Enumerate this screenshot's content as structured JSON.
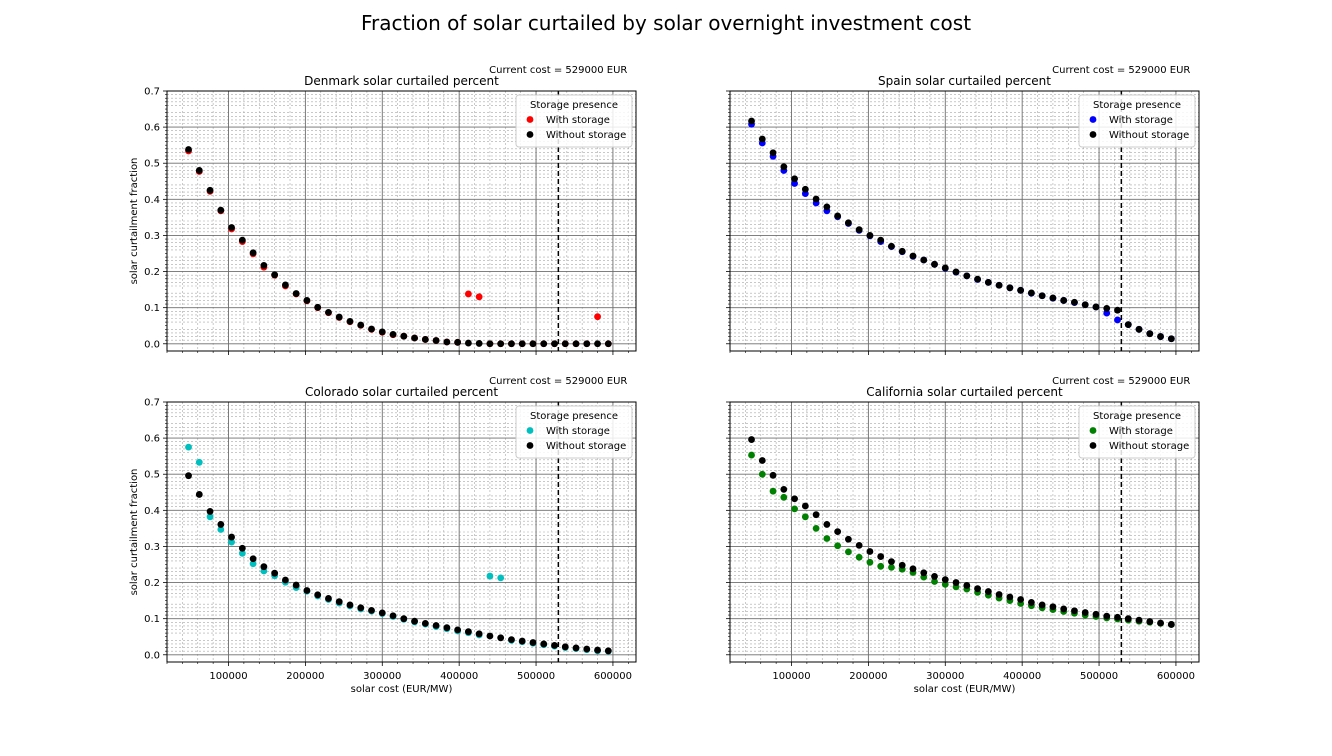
{
  "suptitle": "Fraction of solar curtailed by solar overnight investment cost",
  "chart_data": [
    {
      "type": "scatter",
      "title": "Denmark solar curtailed percent",
      "annotation": "Current cost = 529000 EUR",
      "current_cost": 529000,
      "xlabel": "",
      "ylabel": "solar curtailment fraction",
      "xlim": [
        20000,
        630000
      ],
      "ylim": [
        -0.02,
        0.7
      ],
      "xticks": [],
      "yticks": [
        "0.0",
        "0.1",
        "0.2",
        "0.3",
        "0.4",
        "0.5",
        "0.6",
        "0.7"
      ],
      "grid": true,
      "legend": {
        "title": "Storage presence",
        "position": "top-right"
      },
      "series": [
        {
          "name": "With storage",
          "color": "#ff0000",
          "x": [
            48000,
            62000,
            76000,
            90000,
            104000,
            118000,
            132000,
            146000,
            160000,
            174000,
            188000,
            202000,
            216000,
            230000,
            244000,
            258000,
            272000,
            286000,
            300000,
            314000,
            328000,
            342000,
            356000,
            370000,
            384000,
            398000,
            412000,
            426000,
            440000,
            454000,
            468000,
            482000,
            496000,
            510000,
            524000,
            538000,
            552000,
            566000,
            580000,
            594000
          ],
          "y": [
            0.534,
            0.477,
            0.422,
            0.368,
            0.318,
            0.283,
            0.249,
            0.212,
            0.19,
            0.16,
            0.138,
            0.119,
            0.1,
            0.086,
            0.073,
            0.061,
            0.051,
            0.04,
            0.032,
            0.025,
            0.021,
            0.016,
            0.012,
            0.009,
            0.005,
            0.004,
            0.138,
            0.13,
            0.0,
            0.0,
            0.0,
            0.0,
            0.0,
            0.0,
            0.0,
            0.0,
            0.0,
            0.0,
            0.075,
            0.0
          ]
        },
        {
          "name": "Without storage",
          "color": "#000000",
          "x": [
            48000,
            62000,
            76000,
            90000,
            104000,
            118000,
            132000,
            146000,
            160000,
            174000,
            188000,
            202000,
            216000,
            230000,
            244000,
            258000,
            272000,
            286000,
            300000,
            314000,
            328000,
            342000,
            356000,
            370000,
            384000,
            398000,
            412000,
            426000,
            440000,
            454000,
            468000,
            482000,
            496000,
            510000,
            524000,
            538000,
            552000,
            566000,
            580000,
            594000
          ],
          "y": [
            0.538,
            0.48,
            0.425,
            0.37,
            0.322,
            0.287,
            0.252,
            0.217,
            0.191,
            0.163,
            0.139,
            0.12,
            0.101,
            0.087,
            0.074,
            0.062,
            0.052,
            0.041,
            0.033,
            0.026,
            0.021,
            0.016,
            0.012,
            0.009,
            0.005,
            0.004,
            0.002,
            0.001,
            0.0,
            0.0,
            0.0,
            0.0,
            0.0,
            0.0,
            0.0,
            0.0,
            0.0,
            0.0,
            0.0,
            0.0
          ]
        }
      ]
    },
    {
      "type": "scatter",
      "title": "Spain solar curtailed percent",
      "annotation": "Current cost = 529000 EUR",
      "current_cost": 529000,
      "xlabel": "",
      "ylabel": "",
      "xlim": [
        20000,
        630000
      ],
      "ylim": [
        -0.02,
        0.7
      ],
      "xticks": [],
      "yticks": [],
      "grid": true,
      "legend": {
        "title": "Storage presence",
        "position": "top-right"
      },
      "series": [
        {
          "name": "With storage",
          "color": "#0000ff",
          "x": [
            48000,
            62000,
            76000,
            90000,
            104000,
            118000,
            132000,
            146000,
            160000,
            174000,
            188000,
            202000,
            216000,
            230000,
            244000,
            258000,
            272000,
            286000,
            300000,
            314000,
            328000,
            342000,
            356000,
            370000,
            384000,
            398000,
            412000,
            426000,
            440000,
            454000,
            468000,
            482000,
            496000,
            510000,
            524000,
            538000,
            552000,
            566000,
            580000,
            594000
          ],
          "y": [
            0.608,
            0.556,
            0.519,
            0.48,
            0.444,
            0.416,
            0.39,
            0.368,
            0.352,
            0.333,
            0.314,
            0.299,
            0.283,
            0.269,
            0.255,
            0.242,
            0.232,
            0.22,
            0.209,
            0.198,
            0.188,
            0.178,
            0.17,
            0.162,
            0.155,
            0.148,
            0.14,
            0.133,
            0.126,
            0.12,
            0.114,
            0.108,
            0.102,
            0.085,
            0.066,
            0.053,
            0.04,
            0.028,
            0.02,
            0.014
          ]
        },
        {
          "name": "Without storage",
          "color": "#000000",
          "x": [
            48000,
            62000,
            76000,
            90000,
            104000,
            118000,
            132000,
            146000,
            160000,
            174000,
            188000,
            202000,
            216000,
            230000,
            244000,
            258000,
            272000,
            286000,
            300000,
            314000,
            328000,
            342000,
            356000,
            370000,
            384000,
            398000,
            412000,
            426000,
            440000,
            454000,
            468000,
            482000,
            496000,
            510000,
            524000,
            538000,
            552000,
            566000,
            580000,
            594000
          ],
          "y": [
            0.617,
            0.567,
            0.529,
            0.49,
            0.457,
            0.428,
            0.401,
            0.379,
            0.354,
            0.335,
            0.316,
            0.3,
            0.287,
            0.27,
            0.256,
            0.243,
            0.232,
            0.22,
            0.21,
            0.199,
            0.188,
            0.179,
            0.17,
            0.162,
            0.155,
            0.148,
            0.141,
            0.133,
            0.127,
            0.12,
            0.115,
            0.108,
            0.102,
            0.098,
            0.093,
            0.053,
            0.04,
            0.028,
            0.02,
            0.014
          ]
        }
      ]
    },
    {
      "type": "scatter",
      "title": "Colorado solar curtailed percent",
      "annotation": "Current cost = 529000 EUR",
      "current_cost": 529000,
      "xlabel": "solar cost (EUR/MW)",
      "ylabel": "solar curtailment fraction",
      "xlim": [
        20000,
        630000
      ],
      "ylim": [
        -0.02,
        0.7
      ],
      "xticks": [
        "100000",
        "200000",
        "300000",
        "400000",
        "500000",
        "600000"
      ],
      "yticks": [
        "0.0",
        "0.1",
        "0.2",
        "0.3",
        "0.4",
        "0.5",
        "0.6",
        "0.7"
      ],
      "grid": true,
      "legend": {
        "title": "Storage presence",
        "position": "top-right"
      },
      "series": [
        {
          "name": "With storage",
          "color": "#00bfbf",
          "x": [
            48000,
            62000,
            76000,
            90000,
            104000,
            118000,
            132000,
            146000,
            160000,
            174000,
            188000,
            202000,
            216000,
            230000,
            244000,
            258000,
            272000,
            286000,
            300000,
            314000,
            328000,
            342000,
            356000,
            370000,
            384000,
            398000,
            412000,
            426000,
            440000,
            454000,
            468000,
            482000,
            496000,
            510000,
            524000,
            538000,
            552000,
            566000,
            580000,
            594000
          ],
          "y": [
            0.575,
            0.533,
            0.382,
            0.347,
            0.312,
            0.281,
            0.252,
            0.232,
            0.219,
            0.201,
            0.186,
            0.176,
            0.163,
            0.153,
            0.143,
            0.135,
            0.127,
            0.121,
            0.114,
            0.106,
            0.098,
            0.091,
            0.085,
            0.078,
            0.072,
            0.066,
            0.061,
            0.055,
            0.218,
            0.213,
            0.04,
            0.036,
            0.032,
            0.028,
            0.024,
            0.02,
            0.017,
            0.014,
            0.011,
            0.01
          ]
        },
        {
          "name": "Without storage",
          "color": "#000000",
          "x": [
            48000,
            62000,
            76000,
            90000,
            104000,
            118000,
            132000,
            146000,
            160000,
            174000,
            188000,
            202000,
            216000,
            230000,
            244000,
            258000,
            272000,
            286000,
            300000,
            314000,
            328000,
            342000,
            356000,
            370000,
            384000,
            398000,
            412000,
            426000,
            440000,
            454000,
            468000,
            482000,
            496000,
            510000,
            524000,
            538000,
            552000,
            566000,
            580000,
            594000
          ],
          "y": [
            0.496,
            0.444,
            0.397,
            0.361,
            0.326,
            0.295,
            0.266,
            0.244,
            0.226,
            0.207,
            0.193,
            0.178,
            0.166,
            0.156,
            0.147,
            0.138,
            0.13,
            0.123,
            0.116,
            0.108,
            0.1,
            0.093,
            0.087,
            0.081,
            0.075,
            0.069,
            0.064,
            0.058,
            0.052,
            0.047,
            0.042,
            0.038,
            0.034,
            0.03,
            0.026,
            0.022,
            0.019,
            0.016,
            0.013,
            0.011
          ]
        }
      ]
    },
    {
      "type": "scatter",
      "title": "California solar curtailed percent",
      "annotation": "Current cost = 529000 EUR",
      "current_cost": 529000,
      "xlabel": "solar cost (EUR/MW)",
      "ylabel": "",
      "xlim": [
        20000,
        630000
      ],
      "ylim": [
        -0.02,
        0.7
      ],
      "xticks": [
        "100000",
        "200000",
        "300000",
        "400000",
        "500000",
        "600000"
      ],
      "yticks": [],
      "grid": true,
      "legend": {
        "title": "Storage presence",
        "position": "top-right"
      },
      "series": [
        {
          "name": "With storage",
          "color": "#008000",
          "x": [
            48000,
            62000,
            76000,
            90000,
            104000,
            118000,
            132000,
            146000,
            160000,
            174000,
            188000,
            202000,
            216000,
            230000,
            244000,
            258000,
            272000,
            286000,
            300000,
            314000,
            328000,
            342000,
            356000,
            370000,
            384000,
            398000,
            412000,
            426000,
            440000,
            454000,
            468000,
            482000,
            496000,
            510000,
            524000,
            538000,
            552000,
            566000,
            580000,
            594000
          ],
          "y": [
            0.553,
            0.5,
            0.453,
            0.436,
            0.404,
            0.382,
            0.35,
            0.322,
            0.302,
            0.285,
            0.27,
            0.256,
            0.245,
            0.242,
            0.237,
            0.228,
            0.215,
            0.203,
            0.195,
            0.188,
            0.182,
            0.173,
            0.165,
            0.157,
            0.15,
            0.142,
            0.136,
            0.13,
            0.125,
            0.12,
            0.115,
            0.11,
            0.106,
            0.102,
            0.099,
            0.096,
            0.093,
            0.09,
            0.087,
            0.084
          ]
        },
        {
          "name": "Without storage",
          "color": "#000000",
          "x": [
            48000,
            62000,
            76000,
            90000,
            104000,
            118000,
            132000,
            146000,
            160000,
            174000,
            188000,
            202000,
            216000,
            230000,
            244000,
            258000,
            272000,
            286000,
            300000,
            314000,
            328000,
            342000,
            356000,
            370000,
            384000,
            398000,
            412000,
            426000,
            440000,
            454000,
            468000,
            482000,
            496000,
            510000,
            524000,
            538000,
            552000,
            566000,
            580000,
            594000
          ],
          "y": [
            0.596,
            0.538,
            0.497,
            0.458,
            0.432,
            0.412,
            0.388,
            0.361,
            0.341,
            0.32,
            0.303,
            0.286,
            0.272,
            0.258,
            0.248,
            0.238,
            0.227,
            0.217,
            0.208,
            0.2,
            0.192,
            0.183,
            0.175,
            0.167,
            0.16,
            0.153,
            0.145,
            0.138,
            0.133,
            0.127,
            0.122,
            0.117,
            0.112,
            0.107,
            0.104,
            0.1,
            0.096,
            0.092,
            0.088,
            0.084
          ]
        }
      ]
    }
  ]
}
